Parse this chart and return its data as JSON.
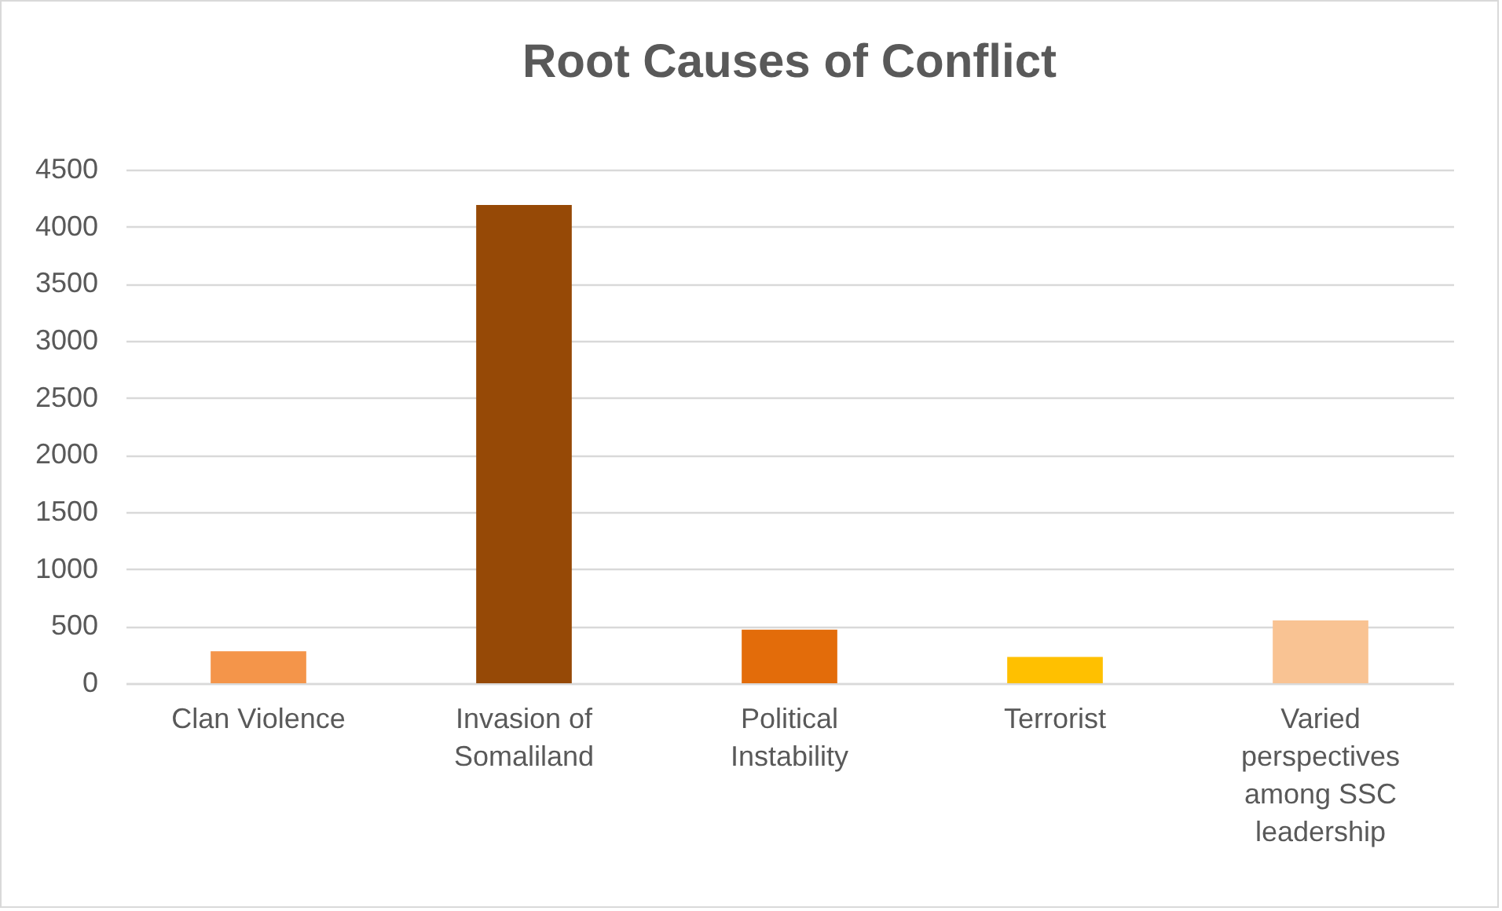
{
  "chart_data": {
    "type": "bar",
    "title": "Root Causes of Conflict",
    "categories": [
      "Clan Violence",
      "Invasion of Somaliland",
      "Political Instability",
      "Terrorist",
      "Varied perspectives among SSC leadership"
    ],
    "values": [
      280,
      4190,
      470,
      230,
      550
    ],
    "colors": [
      "#f4954a",
      "#964906",
      "#e36c0a",
      "#ffc000",
      "#f9c393"
    ],
    "ylim": [
      0,
      4500
    ],
    "yticks": [
      0,
      500,
      1000,
      1500,
      2000,
      2500,
      3000,
      3500,
      4000,
      4500
    ],
    "grid": "y"
  }
}
